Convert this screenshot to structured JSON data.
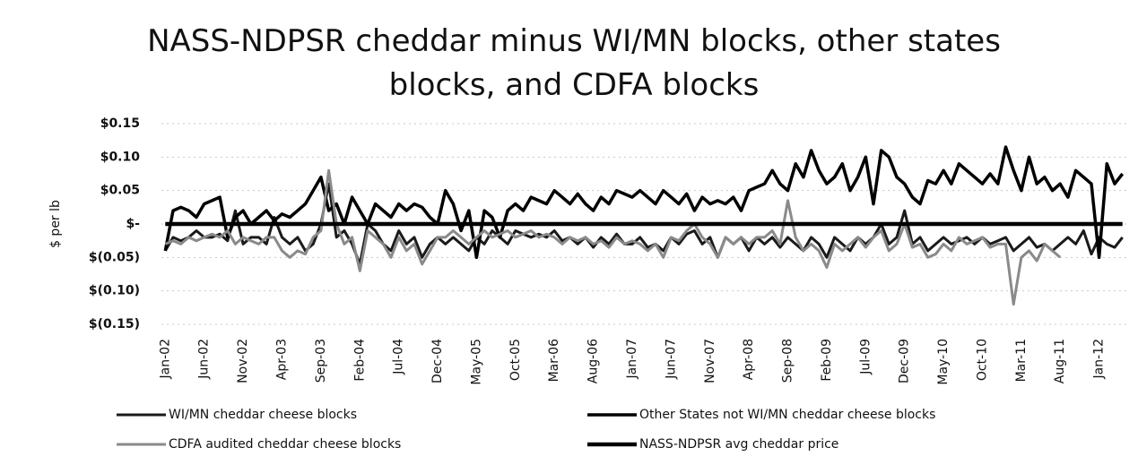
{
  "chart_data": {
    "type": "line",
    "title": "NASS-NDPSR cheddar minus WI/MN blocks, other states blocks, and CDFA blocks",
    "ylabel": "$ per lb",
    "ylim": [
      -0.15,
      0.15
    ],
    "yticks": [
      {
        "value": 0.15,
        "label": "$0.15"
      },
      {
        "value": 0.1,
        "label": "$0.10"
      },
      {
        "value": 0.05,
        "label": "$0.05"
      },
      {
        "value": 0,
        "label": "$-"
      },
      {
        "value": -0.05,
        "label": "$(0.05)"
      },
      {
        "value": -0.1,
        "label": "$(0.10)"
      },
      {
        "value": -0.15,
        "label": "$(0.15)"
      }
    ],
    "grid": true,
    "legend": "bottom",
    "categories": [
      "Jan-02",
      null,
      null,
      null,
      null,
      "Jun-02",
      null,
      null,
      null,
      null,
      "Nov-02",
      null,
      null,
      null,
      null,
      "Apr-03",
      null,
      null,
      null,
      null,
      "Sep-03",
      null,
      null,
      null,
      null,
      "Feb-04",
      null,
      null,
      null,
      null,
      "Jul-04",
      null,
      null,
      null,
      null,
      "Dec-04",
      null,
      null,
      null,
      null,
      "May-05",
      null,
      null,
      null,
      null,
      "Oct-05",
      null,
      null,
      null,
      null,
      "Mar-06",
      null,
      null,
      null,
      null,
      "Aug-06",
      null,
      null,
      null,
      null,
      "Jan-07",
      null,
      null,
      null,
      null,
      "Jun-07",
      null,
      null,
      null,
      null,
      "Nov-07",
      null,
      null,
      null,
      null,
      "Apr-08",
      null,
      null,
      null,
      null,
      "Sep-08",
      null,
      null,
      null,
      null,
      "Feb-09",
      null,
      null,
      null,
      null,
      "Jul-09",
      null,
      null,
      null,
      null,
      "Dec-09",
      null,
      null,
      null,
      null,
      "May-10",
      null,
      null,
      null,
      null,
      "Oct-10",
      null,
      null,
      null,
      null,
      "Mar-11",
      null,
      null,
      null,
      null,
      "Aug-11",
      null,
      null,
      null,
      null,
      "Jan-12",
      null,
      null,
      null
    ],
    "series": [
      {
        "name": "WI/MN cheddar cheese blocks",
        "color": "#1a1a1a",
        "width": 3,
        "values": [
          -0.04,
          -0.02,
          -0.025,
          -0.02,
          -0.01,
          -0.02,
          -0.02,
          -0.015,
          -0.025,
          0.02,
          -0.03,
          -0.02,
          -0.02,
          -0.03,
          0.01,
          -0.02,
          -0.03,
          -0.02,
          -0.04,
          -0.03,
          0.0,
          0.06,
          -0.02,
          -0.01,
          -0.03,
          -0.06,
          0.0,
          -0.01,
          -0.03,
          -0.04,
          -0.01,
          -0.03,
          -0.02,
          -0.05,
          -0.03,
          -0.02,
          -0.03,
          -0.02,
          -0.03,
          -0.04,
          -0.02,
          -0.03,
          -0.01,
          -0.02,
          -0.03,
          -0.01,
          -0.015,
          -0.02,
          -0.015,
          -0.02,
          -0.01,
          -0.025,
          -0.02,
          -0.03,
          -0.02,
          -0.035,
          -0.02,
          -0.03,
          -0.015,
          -0.03,
          -0.03,
          -0.02,
          -0.035,
          -0.03,
          -0.04,
          -0.02,
          -0.03,
          -0.015,
          -0.01,
          -0.03,
          -0.02,
          -0.05,
          -0.02,
          -0.03,
          -0.02,
          -0.04,
          -0.02,
          -0.03,
          -0.02,
          -0.035,
          -0.02,
          -0.03,
          -0.04,
          -0.02,
          -0.03,
          -0.05,
          -0.02,
          -0.03,
          -0.04,
          -0.02,
          -0.03,
          -0.02,
          0.0,
          -0.03,
          -0.02,
          0.02,
          -0.03,
          -0.02,
          -0.04,
          -0.03,
          -0.02,
          -0.03,
          -0.025,
          -0.02,
          -0.03,
          -0.02,
          -0.03,
          -0.025,
          -0.02,
          -0.04,
          -0.03,
          -0.02,
          -0.035,
          -0.03,
          -0.04,
          -0.03,
          -0.02,
          -0.03,
          -0.01,
          -0.045,
          -0.02,
          -0.03,
          -0.035,
          -0.02
        ]
      },
      {
        "name": "Other States not WI/MN cheddar cheese blocks",
        "color": "#000000",
        "width": 3.5,
        "values": [
          -0.04,
          0.02,
          0.025,
          0.02,
          0.01,
          0.03,
          0.035,
          0.04,
          -0.02,
          0.01,
          0.02,
          0.0,
          0.01,
          0.02,
          0.005,
          0.015,
          0.01,
          0.02,
          0.03,
          0.05,
          0.07,
          0.02,
          0.03,
          0.0,
          0.04,
          0.02,
          0.0,
          0.03,
          0.02,
          0.01,
          0.03,
          0.02,
          0.03,
          0.025,
          0.01,
          0.0,
          0.05,
          0.03,
          -0.01,
          0.02,
          -0.05,
          0.02,
          0.01,
          -0.02,
          0.02,
          0.03,
          0.02,
          0.04,
          0.035,
          0.03,
          0.05,
          0.04,
          0.03,
          0.045,
          0.03,
          0.02,
          0.04,
          0.03,
          0.05,
          0.045,
          0.04,
          0.05,
          0.04,
          0.03,
          0.05,
          0.04,
          0.03,
          0.045,
          0.02,
          0.04,
          0.03,
          0.035,
          0.03,
          0.04,
          0.02,
          0.05,
          0.055,
          0.06,
          0.08,
          0.06,
          0.05,
          0.09,
          0.07,
          0.11,
          0.08,
          0.06,
          0.07,
          0.09,
          0.05,
          0.07,
          0.1,
          0.03,
          0.11,
          0.1,
          0.07,
          0.06,
          0.04,
          0.03,
          0.065,
          0.06,
          0.08,
          0.06,
          0.09,
          0.08,
          0.07,
          0.06,
          0.075,
          0.06,
          0.115,
          0.08,
          0.05,
          0.1,
          0.06,
          0.07,
          0.05,
          0.06,
          0.04,
          0.08,
          0.07,
          0.06,
          -0.05,
          0.09,
          0.06,
          0.075
        ]
      },
      {
        "name": "CDFA audited cheddar cheese blocks",
        "color": "#8a8a8a",
        "width": 3,
        "values": [
          -0.03,
          -0.025,
          -0.03,
          -0.02,
          -0.025,
          -0.02,
          -0.015,
          -0.02,
          -0.01,
          -0.03,
          -0.02,
          -0.025,
          -0.03,
          -0.02,
          -0.02,
          -0.04,
          -0.05,
          -0.04,
          -0.045,
          -0.02,
          -0.01,
          0.08,
          0.0,
          -0.03,
          -0.02,
          -0.07,
          -0.01,
          -0.02,
          -0.03,
          -0.05,
          -0.02,
          -0.04,
          -0.03,
          -0.06,
          -0.04,
          -0.02,
          -0.02,
          -0.01,
          -0.02,
          -0.03,
          -0.02,
          -0.01,
          -0.02,
          -0.015,
          -0.01,
          -0.02,
          -0.015,
          -0.01,
          -0.02,
          -0.015,
          -0.02,
          -0.03,
          -0.02,
          -0.025,
          -0.02,
          -0.03,
          -0.025,
          -0.035,
          -0.02,
          -0.03,
          -0.025,
          -0.03,
          -0.04,
          -0.03,
          -0.05,
          -0.02,
          -0.025,
          -0.01,
          0.0,
          -0.02,
          -0.03,
          -0.05,
          -0.02,
          -0.03,
          -0.02,
          -0.03,
          -0.02,
          -0.02,
          -0.01,
          -0.03,
          0.035,
          -0.02,
          -0.04,
          -0.03,
          -0.04,
          -0.065,
          -0.03,
          -0.04,
          -0.03,
          -0.02,
          -0.035,
          -0.02,
          -0.01,
          -0.04,
          -0.03,
          0.0,
          -0.035,
          -0.03,
          -0.05,
          -0.045,
          -0.03,
          -0.04,
          -0.02,
          -0.03,
          -0.025,
          -0.02,
          -0.035,
          -0.03,
          -0.03,
          -0.12,
          -0.05,
          -0.04,
          -0.055,
          -0.03,
          -0.04,
          -0.05,
          null,
          null,
          null,
          null,
          null,
          null,
          null,
          null
        ]
      },
      {
        "name": "NASS-NDPSR avg cheddar price",
        "color": "#000000",
        "width": 4.5,
        "values": [
          0,
          0,
          0,
          0,
          0,
          0,
          0,
          0,
          0,
          0,
          0,
          0,
          0,
          0,
          0,
          0,
          0,
          0,
          0,
          0,
          0,
          0,
          0,
          0,
          0,
          0,
          0,
          0,
          0,
          0,
          0,
          0,
          0,
          0,
          0,
          0,
          0,
          0,
          0,
          0,
          0,
          0,
          0,
          0,
          0,
          0,
          0,
          0,
          0,
          0,
          0,
          0,
          0,
          0,
          0,
          0,
          0,
          0,
          0,
          0,
          0,
          0,
          0,
          0,
          0,
          0,
          0,
          0,
          0,
          0,
          0,
          0,
          0,
          0,
          0,
          0,
          0,
          0,
          0,
          0,
          0,
          0,
          0,
          0,
          0,
          0,
          0,
          0,
          0,
          0,
          0,
          0,
          0,
          0,
          0,
          0,
          0,
          0,
          0,
          0,
          0,
          0,
          0,
          0,
          0,
          0,
          0,
          0,
          0,
          0,
          0,
          0,
          0,
          0,
          0,
          0,
          0,
          0,
          0,
          0,
          0,
          0,
          0,
          0
        ]
      }
    ]
  }
}
